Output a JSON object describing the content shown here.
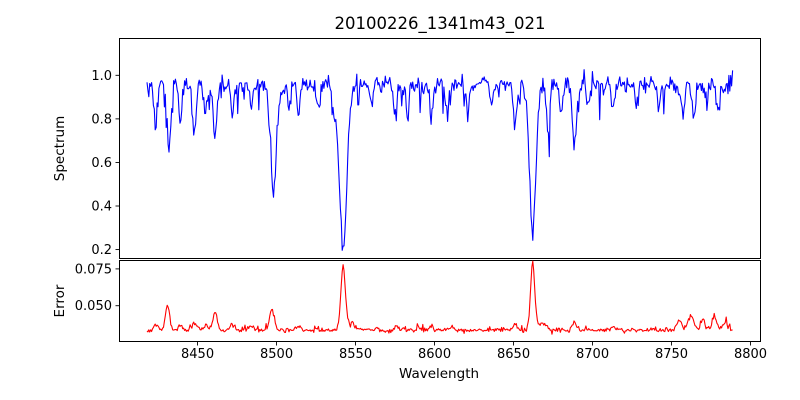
{
  "title": "20100226_1341m43_021",
  "colors": {
    "spectrum_line": "#0000ff",
    "error_line": "#ff0000",
    "axis": "#000000",
    "background": "#ffffff"
  },
  "chart_data": {
    "type": "line",
    "title": "20100226_1341m43_021",
    "xlabel": "Wavelength",
    "xlim": [
      8400.6,
      8806.3
    ],
    "x_range_data": [
      8418,
      8789
    ],
    "x_ticks": [
      8450,
      8500,
      8550,
      8600,
      8650,
      8700,
      8750,
      8800
    ],
    "x_tick_labels": [
      "8450",
      "8500",
      "8550",
      "8600",
      "8650",
      "8700",
      "8750",
      "8800"
    ],
    "grid": false,
    "legend": "none",
    "panels": [
      {
        "name": "spectrum",
        "ylabel": "Spectrum",
        "ylim": [
          0.159,
          1.169
        ],
        "y_ticks": [
          1.0,
          0.8,
          0.6,
          0.4,
          0.2
        ],
        "y_tick_labels": [
          "1.0",
          "0.8",
          "0.6",
          "0.4",
          "0.2"
        ],
        "color": "#0000ff",
        "continuum_level": 0.955,
        "deepest_minima": [
          {
            "wavelength": 8498,
            "flux": 0.47
          },
          {
            "wavelength": 8542,
            "flux": 0.21
          },
          {
            "wavelength": 8662,
            "flux": 0.29
          },
          {
            "wavelength": 8689,
            "flux": 0.7
          }
        ],
        "absorption_lines": [
          {
            "c": 8423.5,
            "d": 0.18,
            "s": 1.1
          },
          {
            "c": 8432.0,
            "d": 0.27,
            "s": 1.2
          },
          {
            "c": 8439.0,
            "d": 0.15,
            "s": 1.0
          },
          {
            "c": 8448.0,
            "d": 0.22,
            "s": 1.2
          },
          {
            "c": 8455.0,
            "d": 0.12,
            "s": 1.0
          },
          {
            "c": 8461.0,
            "d": 0.24,
            "s": 1.3
          },
          {
            "c": 8472.0,
            "d": 0.14,
            "s": 1.0
          },
          {
            "c": 8484.0,
            "d": 0.1,
            "s": 0.9
          },
          {
            "c": 8498.0,
            "d": 0.49,
            "s": 1.8
          },
          {
            "c": 8508.0,
            "d": 0.1,
            "s": 0.9
          },
          {
            "c": 8514.0,
            "d": 0.13,
            "s": 1.0
          },
          {
            "c": 8527.0,
            "d": 0.12,
            "s": 1.0
          },
          {
            "c": 8536.0,
            "d": 0.12,
            "s": 1.0
          },
          {
            "c": 8542.1,
            "d": 0.75,
            "s": 2.4
          },
          {
            "c": 8560.0,
            "d": 0.1,
            "s": 0.9
          },
          {
            "c": 8575.0,
            "d": 0.12,
            "s": 1.0
          },
          {
            "c": 8583.0,
            "d": 0.13,
            "s": 1.0
          },
          {
            "c": 8598.0,
            "d": 0.15,
            "s": 1.0
          },
          {
            "c": 8608.0,
            "d": 0.14,
            "s": 1.0
          },
          {
            "c": 8621.0,
            "d": 0.13,
            "s": 1.0
          },
          {
            "c": 8636.0,
            "d": 0.1,
            "s": 0.9
          },
          {
            "c": 8651.0,
            "d": 0.18,
            "s": 1.1
          },
          {
            "c": 8662.1,
            "d": 0.67,
            "s": 2.0
          },
          {
            "c": 8672.0,
            "d": 0.2,
            "s": 1.1
          },
          {
            "c": 8680.0,
            "d": 0.12,
            "s": 1.0
          },
          {
            "c": 8688.6,
            "d": 0.27,
            "s": 1.3
          },
          {
            "c": 8697.0,
            "d": 0.1,
            "s": 0.9
          },
          {
            "c": 8713.0,
            "d": 0.11,
            "s": 1.0
          },
          {
            "c": 8728.0,
            "d": 0.09,
            "s": 0.9
          },
          {
            "c": 8742.0,
            "d": 0.1,
            "s": 0.9
          },
          {
            "c": 8757.0,
            "d": 0.13,
            "s": 1.0
          },
          {
            "c": 8764.0,
            "d": 0.14,
            "s": 1.0
          },
          {
            "c": 8772.0,
            "d": 0.11,
            "s": 1.0
          },
          {
            "c": 8779.0,
            "d": 0.1,
            "s": 1.0
          }
        ],
        "synthesis": {
          "noise_sigma": 0.02,
          "downspike_prob": 0.05,
          "downspike_max": 0.13,
          "upspike_prob": 0.03,
          "upspike_max": 0.06,
          "edge_boost": 0.7,
          "edge_scale": 10,
          "sample_step": 0.58,
          "seed": 20100226
        }
      },
      {
        "name": "error",
        "ylabel": "Error",
        "ylim": [
          0.0257,
          0.0807
        ],
        "y_ticks": [
          0.075,
          0.05
        ],
        "y_tick_labels": [
          "0.075",
          "0.050"
        ],
        "color": "#ff0000",
        "baseline_level": 0.0335,
        "highest_peaks": [
          {
            "wavelength": 8542,
            "error": 0.077
          },
          {
            "wavelength": 8662,
            "error": 0.08
          },
          {
            "wavelength": 8431,
            "error": 0.051
          }
        ],
        "error_peaks": [
          {
            "c": 8424.0,
            "a": 0.004,
            "s": 1.4
          },
          {
            "c": 8431.0,
            "a": 0.0165,
            "s": 1.3
          },
          {
            "c": 8439.0,
            "a": 0.0035,
            "s": 1.2
          },
          {
            "c": 8448.0,
            "a": 0.005,
            "s": 1.4
          },
          {
            "c": 8455.0,
            "a": 0.0035,
            "s": 1.2
          },
          {
            "c": 8461.0,
            "a": 0.012,
            "s": 1.4
          },
          {
            "c": 8472.0,
            "a": 0.0035,
            "s": 1.2
          },
          {
            "c": 8484.0,
            "a": 0.003,
            "s": 1.2
          },
          {
            "c": 8497.0,
            "a": 0.0135,
            "s": 1.6
          },
          {
            "c": 8514.0,
            "a": 0.003,
            "s": 1.2
          },
          {
            "c": 8542.1,
            "a": 0.043,
            "s": 1.4
          },
          {
            "c": 8547.0,
            "a": 0.005,
            "s": 2.5
          },
          {
            "c": 8576.0,
            "a": 0.0025,
            "s": 1.2
          },
          {
            "c": 8598.0,
            "a": 0.0025,
            "s": 1.2
          },
          {
            "c": 8611.0,
            "a": 0.002,
            "s": 1.2
          },
          {
            "c": 8651.0,
            "a": 0.004,
            "s": 1.3
          },
          {
            "c": 8662.1,
            "a": 0.046,
            "s": 1.3
          },
          {
            "c": 8668.0,
            "a": 0.005,
            "s": 2.2
          },
          {
            "c": 8688.6,
            "a": 0.0045,
            "s": 1.4
          },
          {
            "c": 8713.0,
            "a": 0.0025,
            "s": 1.2
          },
          {
            "c": 8755.0,
            "a": 0.0075,
            "s": 1.6
          },
          {
            "c": 8762.0,
            "a": 0.0105,
            "s": 1.6
          },
          {
            "c": 8770.0,
            "a": 0.0065,
            "s": 1.5
          },
          {
            "c": 8777.0,
            "a": 0.009,
            "s": 1.6
          },
          {
            "c": 8784.0,
            "a": 0.005,
            "s": 1.5
          }
        ],
        "synthesis": {
          "noise_sigma": 0.0008,
          "bump_prob": 0.06,
          "bump_max": 0.0025,
          "edge_boost": 0.6,
          "edge_scale": 20,
          "sample_step": 0.58,
          "seed": 1341
        }
      }
    ]
  }
}
